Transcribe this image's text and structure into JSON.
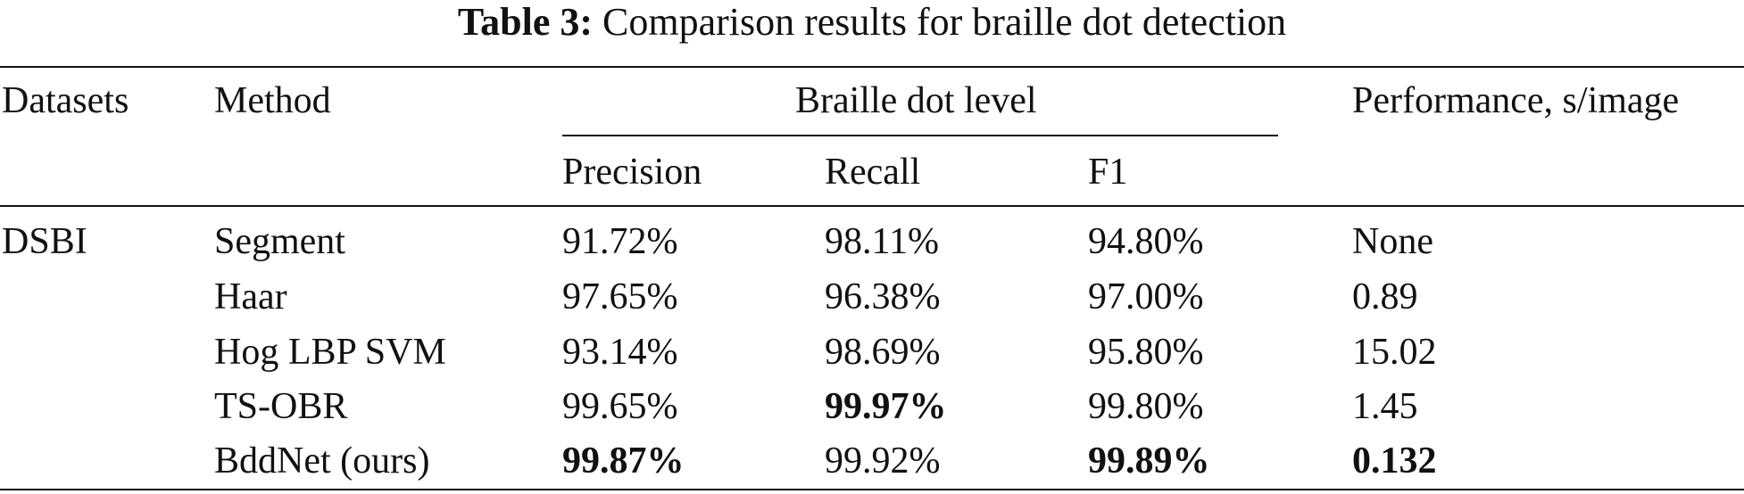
{
  "caption": {
    "label": "Table 3:",
    "text": "Comparison results for braille dot detection"
  },
  "header": {
    "datasets": "Datasets",
    "method": "Method",
    "group": "Braille dot level",
    "performance": "Performance, s/image",
    "precision": "Precision",
    "recall": "Recall",
    "f1": "F1"
  },
  "dataset_name": "DSBI",
  "rows": [
    {
      "method": "Segment",
      "precision": "91.72%",
      "recall": "98.11%",
      "f1": "94.80%",
      "performance": "None"
    },
    {
      "method": "Haar",
      "precision": "97.65%",
      "recall": "96.38%",
      "f1": "97.00%",
      "performance": "0.89"
    },
    {
      "method": "Hog LBP SVM",
      "precision": "93.14%",
      "recall": "98.69%",
      "f1": "95.80%",
      "performance": "15.02"
    },
    {
      "method": "TS-OBR",
      "precision": "99.65%",
      "recall": "99.97%",
      "f1": "99.80%",
      "performance": "1.45"
    },
    {
      "method": "BddNet (ours)",
      "precision": "99.87%",
      "recall": "99.92%",
      "f1": "99.89%",
      "performance": "0.132"
    }
  ]
}
